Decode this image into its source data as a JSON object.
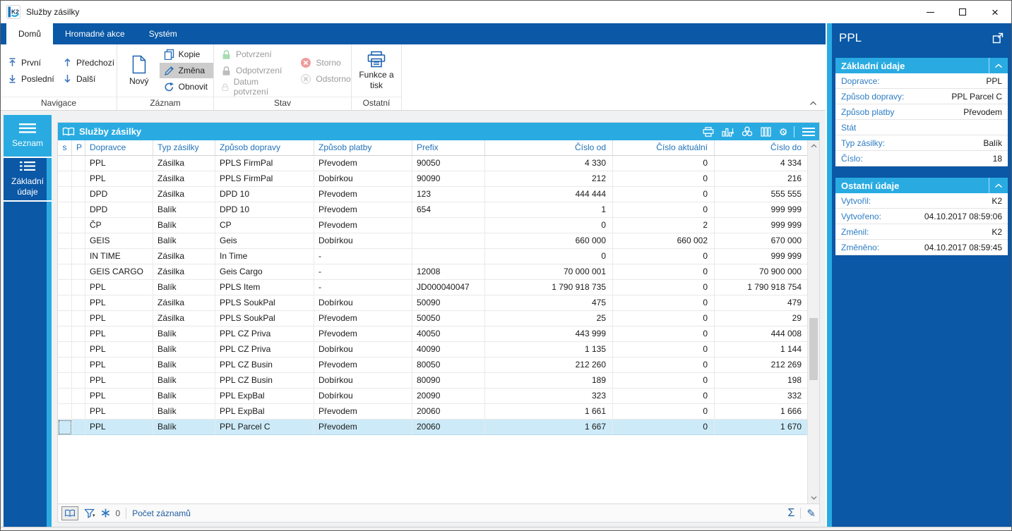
{
  "window": {
    "title": "Služby zásilky"
  },
  "icons": {
    "close": "×",
    "gear": "⚙",
    "caret_down": "▾",
    "sigma": "Σ",
    "pencil": "✎"
  },
  "ribbon": {
    "tabs": [
      {
        "label": "Domů",
        "active": true
      },
      {
        "label": "Hromadné akce",
        "active": false
      },
      {
        "label": "Systém",
        "active": false
      }
    ],
    "groups": [
      {
        "label": "Navigace",
        "buttons": [
          {
            "label": "První"
          },
          {
            "label": "Předchozí"
          },
          {
            "label": "Poslední"
          },
          {
            "label": "Další"
          }
        ]
      },
      {
        "label": "Záznam",
        "buttons": [
          {
            "label": "Nový"
          },
          {
            "label": "Kopie"
          },
          {
            "label": "Změna",
            "highlighted": true
          },
          {
            "label": "Obnovit"
          }
        ]
      },
      {
        "label": "Stav",
        "buttons": [
          {
            "label": "Potvrzení",
            "disabled": true
          },
          {
            "label": "Odpotvrzení",
            "disabled": true
          },
          {
            "label": "Datum potvrzení",
            "disabled": true
          },
          {
            "label": "Storno",
            "disabled": true
          },
          {
            "label": "Odstorno",
            "disabled": true
          }
        ]
      },
      {
        "label": "Ostatní",
        "buttons": [
          {
            "label": "Funkce a tisk"
          }
        ]
      }
    ]
  },
  "sidebar": {
    "items": [
      {
        "label": "Seznam",
        "active": true
      },
      {
        "label": "Základní údaje",
        "active": false
      }
    ]
  },
  "table": {
    "title": "Služby zásilky",
    "columns": [
      "s",
      "P",
      "Dopravce",
      "Typ zásilky",
      "Způsob dopravy",
      "Způsob platby",
      "Prefix",
      "Číslo od",
      "Číslo aktuální",
      "Číslo do"
    ],
    "rows": [
      [
        "PPL",
        "Zásilka",
        "PPLS FirmPal",
        "Převodem",
        "90050",
        "4 330",
        "0",
        "4 334"
      ],
      [
        "PPL",
        "Zásilka",
        "PPLS FirmPal",
        "Dobírkou",
        "90090",
        "212",
        "0",
        "216"
      ],
      [
        "DPD",
        "Zásilka",
        "DPD 10",
        "Převodem",
        "123",
        "444 444",
        "0",
        "555 555"
      ],
      [
        "DPD",
        "Balík",
        "DPD 10",
        "Převodem",
        "654",
        "1",
        "0",
        "999 999"
      ],
      [
        "ČP",
        "Balík",
        "CP",
        "Převodem",
        "",
        "0",
        "2",
        "999 999"
      ],
      [
        "GEIS",
        "Balík",
        "Geis",
        "Dobírkou",
        "",
        "660 000",
        "660 002",
        "670 000"
      ],
      [
        "IN TIME",
        "Zásilka",
        "In Time",
        "-",
        "",
        "0",
        "0",
        "999 999"
      ],
      [
        "GEIS CARGO",
        "Zásilka",
        "Geis Cargo",
        "-",
        "12008",
        "70 000 001",
        "0",
        "70 900 000"
      ],
      [
        "PPL",
        "Balík",
        "PPLS Item",
        "-",
        "JD000040047",
        "1 790 918 735",
        "0",
        "1 790 918 754"
      ],
      [
        "PPL",
        "Zásilka",
        "PPLS SoukPal",
        "Dobírkou",
        "50090",
        "475",
        "0",
        "479"
      ],
      [
        "PPL",
        "Zásilka",
        "PPLS SoukPal",
        "Převodem",
        "50050",
        "25",
        "0",
        "29"
      ],
      [
        "PPL",
        "Balík",
        "PPL CZ Priva",
        "Převodem",
        "40050",
        "443 999",
        "0",
        "444 008"
      ],
      [
        "PPL",
        "Balík",
        "PPL CZ Priva",
        "Dobírkou",
        "40090",
        "1 135",
        "0",
        "1 144"
      ],
      [
        "PPL",
        "Balík",
        "PPL CZ Busin",
        "Převodem",
        "80050",
        "212 260",
        "0",
        "212 269"
      ],
      [
        "PPL",
        "Balík",
        "PPL CZ Busin",
        "Dobírkou",
        "80090",
        "189",
        "0",
        "198"
      ],
      [
        "PPL",
        "Balík",
        "PPL ExpBal",
        "Dobírkou",
        "20090",
        "323",
        "0",
        "332"
      ],
      [
        "PPL",
        "Balík",
        "PPL ExpBal",
        "Převodem",
        "20060",
        "1 661",
        "0",
        "1 666"
      ],
      [
        "PPL",
        "Balík",
        "PPL Parcel C",
        "Převodem",
        "20060",
        "1 667",
        "0",
        "1 670"
      ]
    ],
    "selected_index": 17,
    "footer": {
      "frozen_count": "0",
      "records_label": "Počet záznamů"
    }
  },
  "panel": {
    "title": "PPL",
    "sections": [
      {
        "title": "Základní údaje",
        "fields": [
          {
            "label": "Dopravce:",
            "value": "PPL"
          },
          {
            "label": "Způsob dopravy:",
            "value": "PPL Parcel C"
          },
          {
            "label": "Způsob platby",
            "value": "Převodem"
          },
          {
            "label": "Stát",
            "value": ""
          },
          {
            "label": "Typ zásilky:",
            "value": "Balík"
          },
          {
            "label": "Číslo:",
            "value": "18"
          }
        ]
      },
      {
        "title": "Ostatní údaje",
        "fields": [
          {
            "label": "Vytvořil:",
            "value": "K2"
          },
          {
            "label": "Vytvořeno:",
            "value": "04.10.2017 08:59:06"
          },
          {
            "label": "Změnil:",
            "value": "K2"
          },
          {
            "label": "Změněno:",
            "value": "04.10.2017 08:59:45"
          }
        ]
      }
    ]
  },
  "colors": {
    "accent_dark": "#0a58a6",
    "accent_cyan": "#29abe2",
    "selection": "#cdeaf8"
  }
}
